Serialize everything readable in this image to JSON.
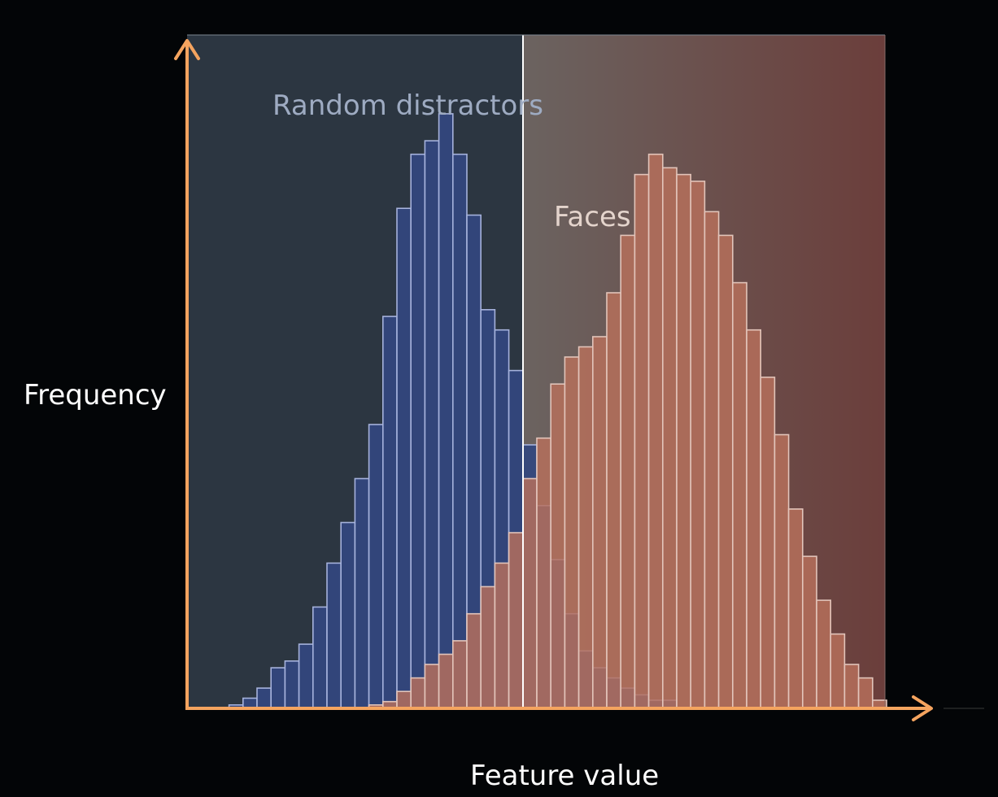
{
  "chart_data": {
    "type": "bar",
    "xlabel": "Feature value",
    "ylabel": "Frequency",
    "xlim": [
      0,
      50
    ],
    "ylim": [
      0,
      100
    ],
    "threshold": 24,
    "series": [
      {
        "name": "Random distractors",
        "color": "#33467f",
        "edge": "#a6b2dc",
        "values": [
          0,
          0,
          0,
          0.5,
          1.5,
          3,
          6,
          7,
          9.5,
          15,
          21.5,
          27.5,
          34,
          42,
          58,
          74,
          82,
          84,
          88,
          82,
          73,
          59,
          56,
          50,
          39,
          30,
          22,
          14,
          8.5,
          6,
          4.5,
          3,
          2,
          1.2,
          1.2,
          0,
          0,
          0,
          0,
          0,
          0,
          0,
          0,
          0,
          0,
          0,
          0,
          0,
          0,
          0
        ]
      },
      {
        "name": "Faces",
        "color": "#b8705c",
        "edge": "#e2c4ba",
        "values": [
          0,
          0,
          0,
          0,
          0,
          0,
          0,
          0,
          0,
          0,
          0,
          0,
          0,
          0.5,
          1,
          2.5,
          4.5,
          6.5,
          8,
          10,
          14,
          18,
          21.5,
          26,
          34,
          40,
          48,
          52,
          53.5,
          55,
          61.5,
          70,
          79,
          82,
          80,
          79,
          78,
          73.5,
          70,
          63,
          56,
          49,
          40.5,
          29.5,
          22.5,
          16,
          11,
          6.5,
          4.5,
          1.2
        ]
      }
    ],
    "threshold_color": "#ffffff",
    "axis_color": "#f5a45f"
  }
}
